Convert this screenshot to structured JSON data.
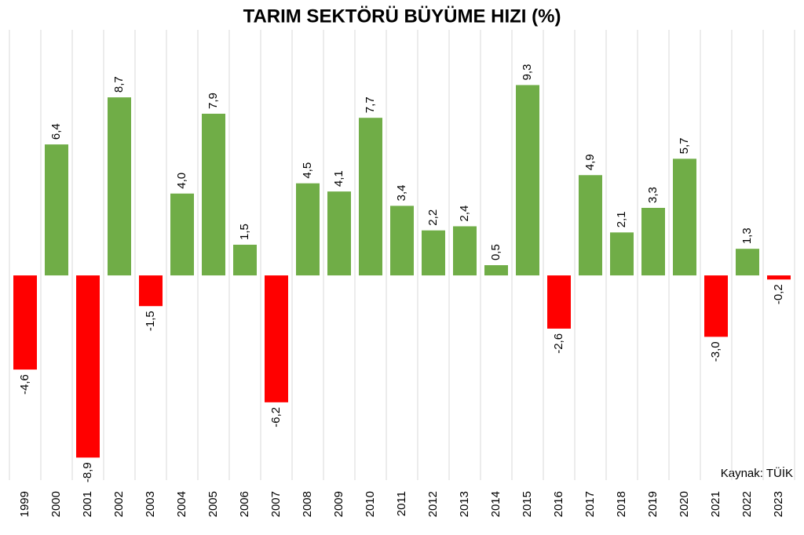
{
  "chart_data": {
    "type": "bar",
    "title": "TARIM SEKTÖRÜ BÜYÜME HIZI (%)",
    "source": "Kaynak: TÜİK",
    "categories": [
      "1999",
      "2000",
      "2001",
      "2002",
      "2003",
      "2004",
      "2005",
      "2006",
      "2007",
      "2008",
      "2009",
      "2010",
      "2011",
      "2012",
      "2013",
      "2014",
      "2015",
      "2016",
      "2017",
      "2018",
      "2019",
      "2020",
      "2021",
      "2022",
      "2023"
    ],
    "values": [
      -4.6,
      6.4,
      -8.9,
      8.7,
      -1.5,
      4.0,
      7.9,
      1.5,
      -6.2,
      4.5,
      4.1,
      7.7,
      3.4,
      2.2,
      2.4,
      0.5,
      9.3,
      -2.6,
      4.9,
      2.1,
      3.3,
      5.7,
      -3.0,
      1.3,
      -0.2
    ],
    "value_labels": [
      "-4,6",
      "6,4",
      "-8,9",
      "8,7",
      "-1,5",
      "4,0",
      "7,9",
      "1,5",
      "-6,2",
      "4,5",
      "4,1",
      "7,7",
      "3,4",
      "2,2",
      "2,4",
      "0,5",
      "9,3",
      "-2,6",
      "4,9",
      "2,1",
      "3,3",
      "5,7",
      "-3,0",
      "1,3",
      "-0,2"
    ],
    "positive_color": "#70ad47",
    "negative_color": "#ff0000",
    "ylim": [
      -10,
      12
    ]
  }
}
